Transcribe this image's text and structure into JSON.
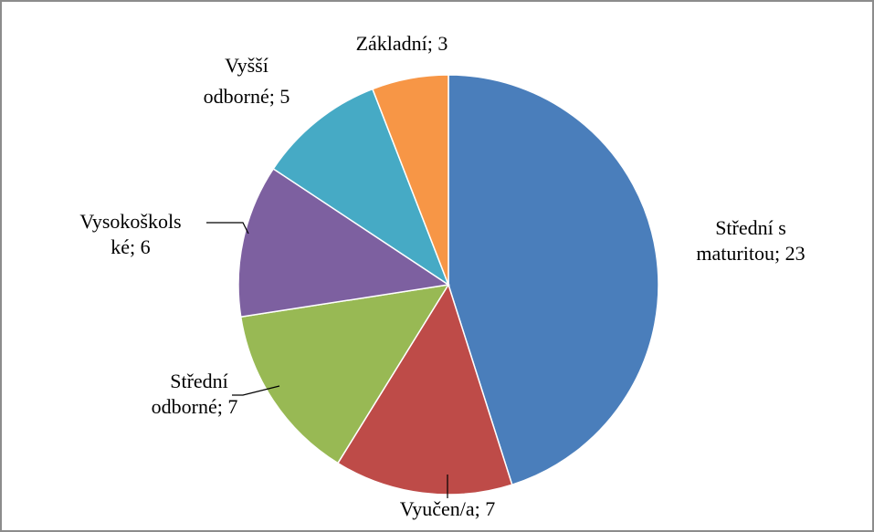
{
  "chart_data": {
    "type": "pie",
    "value_labels": [
      [
        "Střední s",
        "maturitou; 23"
      ],
      [
        "Vyučen/a; 7"
      ],
      [
        "Střední",
        "odborné; 7"
      ],
      [
        "Vysokoškols",
        "ké; 6"
      ],
      [
        "Vyšší",
        "odborné; 5"
      ],
      [
        "Základní; 3"
      ]
    ],
    "values": [
      23,
      7,
      7,
      6,
      5,
      3
    ],
    "colors": [
      "#4a7ebb",
      "#be4b48",
      "#98b954",
      "#7d60a0",
      "#46aac5",
      "#f79646"
    ]
  }
}
